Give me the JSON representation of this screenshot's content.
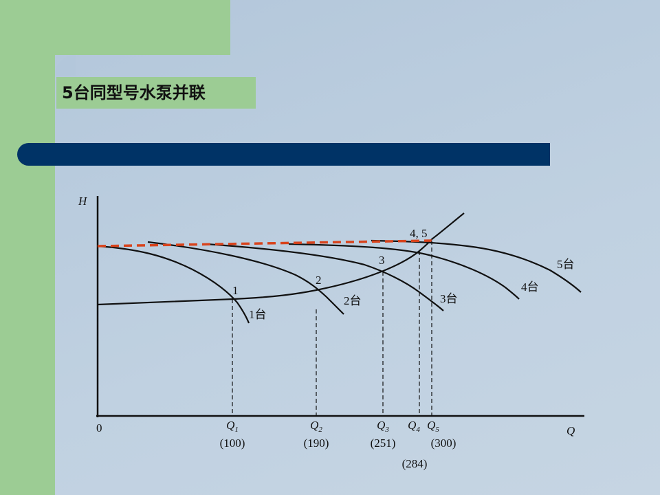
{
  "title": "5台同型号水泵并联",
  "diagram": {
    "axis_h": "H",
    "axis_q": "Q",
    "origin": "0",
    "points": [
      "1",
      "2",
      "3",
      "4, 5"
    ],
    "curves": [
      "1台",
      "2台",
      "3台",
      "4台",
      "5台"
    ],
    "flows": [
      {
        "letter": "Q",
        "sub": "1",
        "value": "(100)"
      },
      {
        "letter": "Q",
        "sub": "2",
        "value": "(190)"
      },
      {
        "letter": "Q",
        "sub": "3",
        "value": "(251)"
      },
      {
        "letter": "Q",
        "sub": "4",
        "value": "(284)"
      },
      {
        "letter": "Q",
        "sub": "5",
        "value": "(300)"
      }
    ]
  }
}
